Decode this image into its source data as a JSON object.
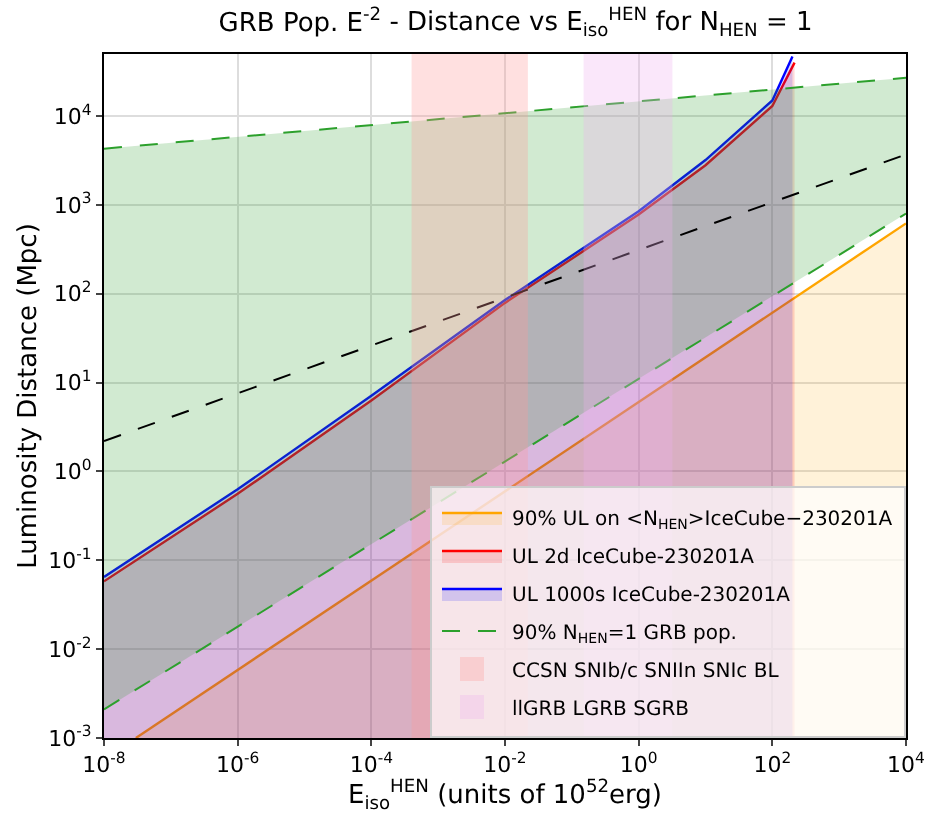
{
  "chart_data": {
    "type": "line",
    "title": "GRB Pop. E$^{-2}$ - Distance vs E$_{iso}$$^{HEN}$ for N$_{HEN}$ = 1",
    "xlabel": "E$_{iso}$$^{HEN}$ (units of 10$^{52}$erg)",
    "ylabel": "Luminosity Distance (Mpc)",
    "log": "xy",
    "grid": true,
    "legend": "bottom right",
    "xlim": [
      1e-08,
      10000
    ],
    "ylim": [
      0.001,
      50000
    ],
    "xticks": [
      {
        "value": 1e-08,
        "label": "10$^{-8}$"
      },
      {
        "value": 1e-06,
        "label": "10$^{-6}$"
      },
      {
        "value": 0.0001,
        "label": "10$^{-4}$"
      },
      {
        "value": 0.01,
        "label": "10$^{-2}$"
      },
      {
        "value": 1,
        "label": "10$^{0}$"
      },
      {
        "value": 100,
        "label": "10$^{2}$"
      },
      {
        "value": 10000,
        "label": "10$^{4}$"
      }
    ],
    "yticks": [
      {
        "value": 0.001,
        "label": "10$^{-3}$"
      },
      {
        "value": 0.01,
        "label": "10$^{-2}$"
      },
      {
        "value": 0.1,
        "label": "10$^{-1}$"
      },
      {
        "value": 1,
        "label": "10$^{0}$"
      },
      {
        "value": 10,
        "label": "10$^{1}$"
      },
      {
        "value": 100,
        "label": "10$^{2}$"
      },
      {
        "value": 1000,
        "label": "10$^{3}$"
      },
      {
        "value": 10000,
        "label": "10$^{4}$"
      }
    ],
    "series": [
      {
        "name": "90% UL on <N$_{HEN}$>IceCube−230201A",
        "type": "area",
        "color": "#ffa500",
        "x": [
          3e-08,
          10000
        ],
        "values": [
          0.001,
          620
        ]
      },
      {
        "name": "UL 2d IceCube-230201A",
        "type": "area",
        "color": "#ff0000",
        "x": [
          1e-08,
          1e-06,
          0.0001,
          0.01,
          1,
          10,
          100,
          215
        ],
        "values": [
          0.058,
          0.56,
          6.3,
          79,
          780,
          2800,
          13000,
          40000
        ]
      },
      {
        "name": "UL 1000s IceCube-230201A",
        "type": "area",
        "color": "#0000ff",
        "x": [
          1e-08,
          1e-06,
          0.0001,
          0.01,
          1,
          10,
          100,
          200
        ],
        "values": [
          0.065,
          0.63,
          7.1,
          85,
          850,
          3200,
          15000,
          47000
        ]
      },
      {
        "name": "90% N$_{HEN}$=1 GRB pop.",
        "type": "line",
        "line_style": "dashed",
        "color": "#2ca02c",
        "x": [
          1e-08,
          10000
        ],
        "values": [
          4300,
          27000
        ],
        "lower": [
          0.0021,
          800
        ],
        "upper": [
          4300,
          27000
        ]
      },
      {
        "type": "line",
        "line_style": "dashed",
        "color": "#2ca02c",
        "x": [
          1e-08,
          10000
        ],
        "values": [
          0.0021,
          800
        ]
      },
      {
        "line_style": "dashed",
        "color": "#000000",
        "x": [
          1e-08,
          10000
        ],
        "values": [
          2.2,
          3700
        ]
      }
    ],
    "bands": [
      {
        "axis": "x",
        "from": 0.0004,
        "to": 0.022,
        "label": "CCSN SNIb/c SNIIn SNIc BL",
        "color": "#ff9999"
      },
      {
        "axis": "x",
        "from": 0.15,
        "to": 3.2,
        "label": "llGRB LGRB SGRB",
        "color": "#f0b0f0"
      }
    ]
  }
}
